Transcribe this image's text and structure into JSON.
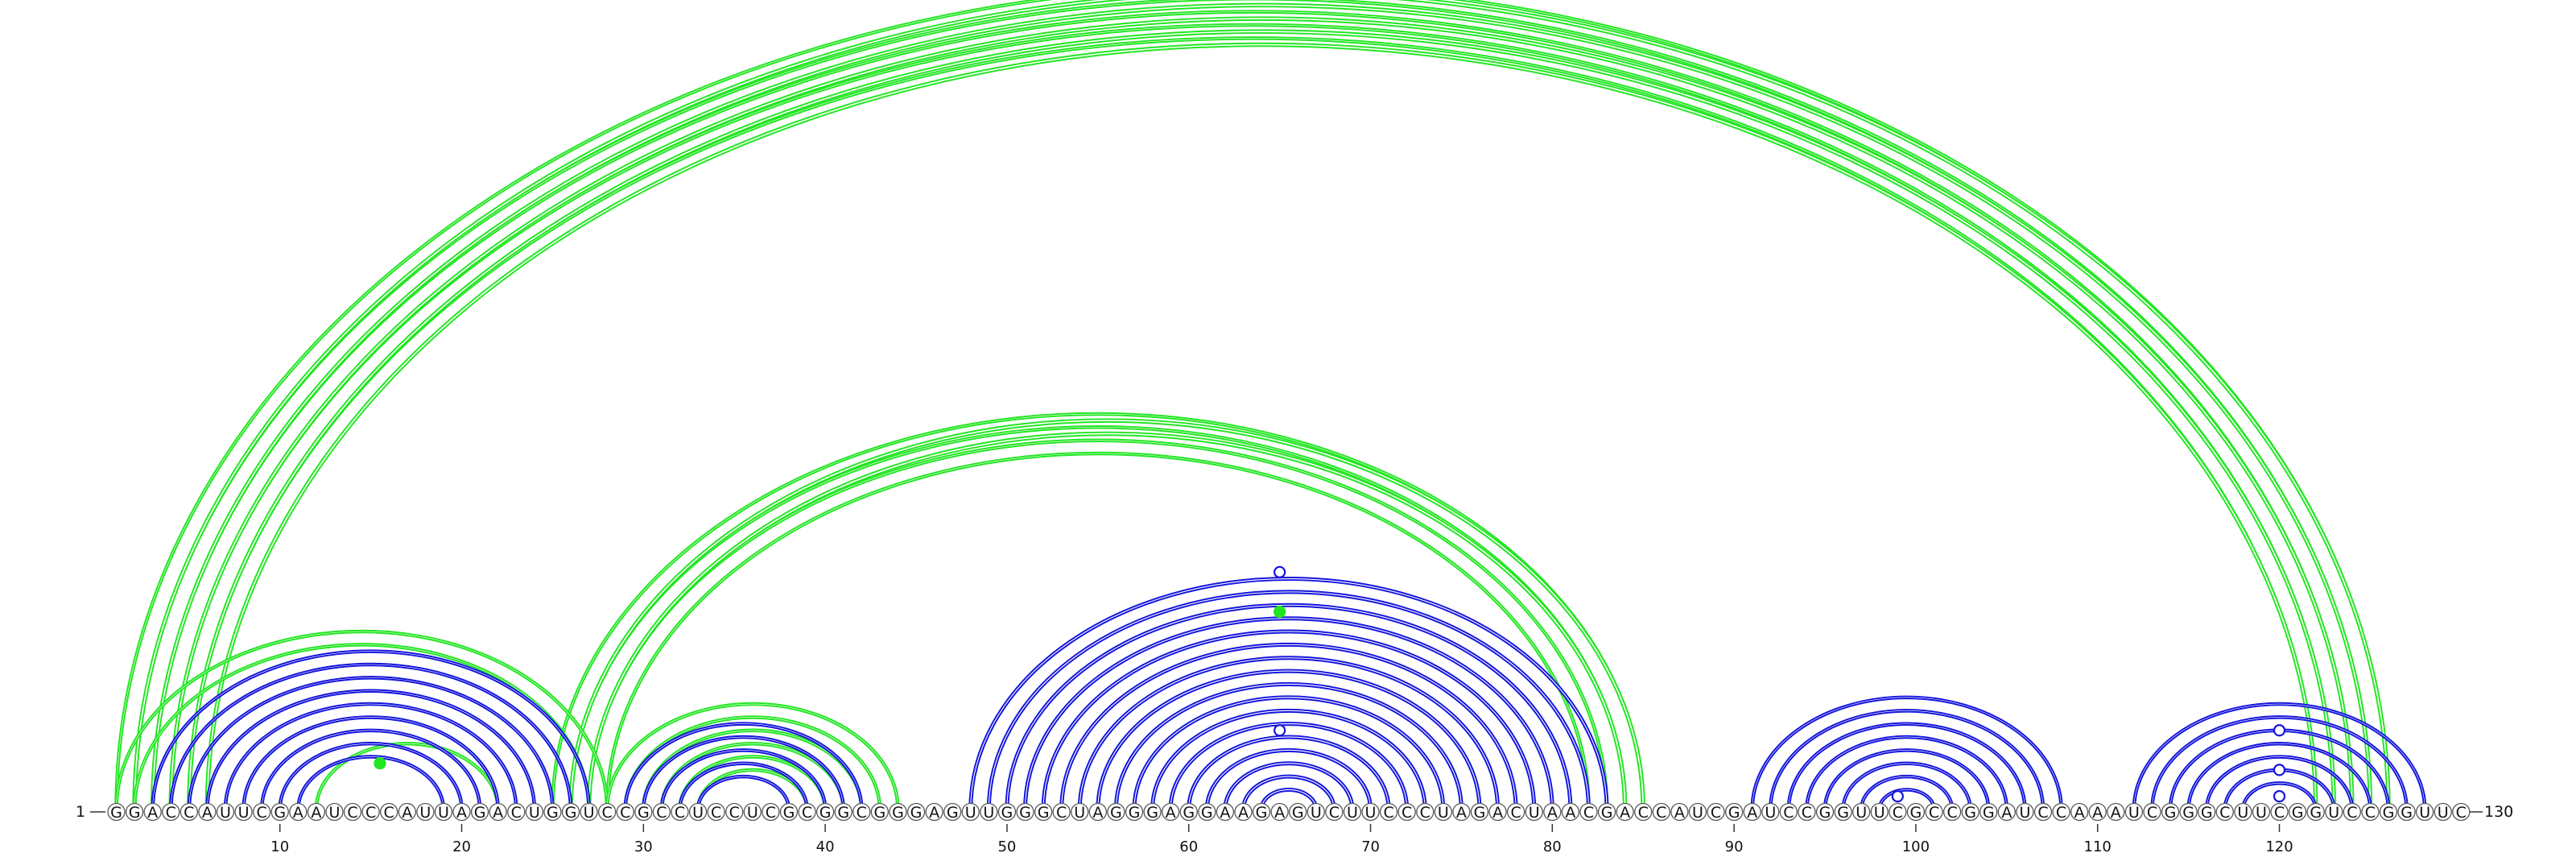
{
  "sequence": "GGACCAUUCGAAUCCCAUUAGACUGGUCCGCCUCCUCGCGGCGGGAGUUGGGCUAGGGAGGAAGAGUCUUCCCUAGACUAACGACCAUCGAUCCGGUUCGCCGGAUCCAAAUCGGGCUUCGGUCCGGUUC",
  "start_label": "1",
  "end_label": "130",
  "ticks": [
    10,
    20,
    30,
    40,
    50,
    60,
    70,
    80,
    90,
    100,
    110,
    120
  ],
  "colors": {
    "blue": "#1414dc",
    "green": "#22e622"
  },
  "arc_groups": [
    {
      "color": "green",
      "weight": 1.5,
      "pairs": [
        [
          1,
          126
        ],
        [
          2,
          125
        ],
        [
          3,
          124
        ],
        [
          4,
          123
        ],
        [
          5,
          122
        ]
      ]
    },
    {
      "color": "green",
      "weight": 2.5,
      "pairs": [
        [
          2,
          126
        ],
        [
          3,
          125
        ],
        [
          4,
          124
        ],
        [
          5,
          123
        ],
        [
          6,
          122
        ]
      ]
    },
    {
      "color": "green",
      "weight": 1.5,
      "pairs": [
        [
          25,
          85
        ],
        [
          26,
          84
        ],
        [
          27,
          83
        ],
        [
          28,
          82
        ]
      ]
    },
    {
      "color": "green",
      "weight": 2.5,
      "pairs": [
        [
          26,
          85
        ],
        [
          27,
          84
        ]
      ]
    },
    {
      "color": "green",
      "weight": 1.5,
      "pairs": [
        [
          1,
          28
        ],
        [
          2,
          27
        ],
        [
          12,
          22
        ],
        [
          28,
          44
        ],
        [
          29,
          43
        ],
        [
          30,
          42
        ],
        [
          31,
          41
        ],
        [
          32,
          40
        ],
        [
          33,
          39
        ]
      ]
    },
    {
      "color": "green",
      "weight": 1.5,
      "pairs": [
        [
          52,
          79
        ]
      ]
    },
    {
      "color": "blue",
      "weight": 1.5,
      "pairs": [
        [
          3,
          27
        ],
        [
          4,
          26
        ],
        [
          5,
          25
        ],
        [
          6,
          24
        ],
        [
          7,
          23
        ],
        [
          8,
          22
        ],
        [
          9,
          21
        ],
        [
          10,
          20
        ],
        [
          11,
          19
        ]
      ]
    },
    {
      "color": "blue",
      "weight": 1.5,
      "pairs": [
        [
          29,
          42
        ],
        [
          30,
          41
        ],
        [
          31,
          40
        ],
        [
          32,
          39
        ],
        [
          33,
          38
        ]
      ]
    },
    {
      "color": "blue",
      "weight": 2.0,
      "pairs": [
        [
          48,
          83
        ],
        [
          49,
          82
        ],
        [
          50,
          81
        ],
        [
          51,
          80
        ],
        [
          52,
          79
        ],
        [
          53,
          78
        ],
        [
          54,
          77
        ],
        [
          55,
          76
        ],
        [
          56,
          75
        ],
        [
          57,
          74
        ],
        [
          58,
          73
        ],
        [
          59,
          72
        ],
        [
          60,
          71
        ],
        [
          61,
          70
        ],
        [
          62,
          69
        ],
        [
          63,
          68
        ],
        [
          64,
          67
        ]
      ]
    },
    {
      "color": "blue",
      "weight": 1.5,
      "pairs": [
        [
          91,
          108
        ],
        [
          92,
          107
        ],
        [
          93,
          106
        ],
        [
          94,
          105
        ],
        [
          95,
          104
        ],
        [
          96,
          103
        ],
        [
          97,
          102
        ],
        [
          98,
          101
        ]
      ]
    },
    {
      "color": "blue",
      "weight": 1.5,
      "pairs": [
        [
          112,
          128
        ],
        [
          113,
          127
        ],
        [
          114,
          126
        ],
        [
          115,
          125
        ],
        [
          116,
          124
        ],
        [
          117,
          123
        ],
        [
          118,
          122
        ]
      ]
    }
  ],
  "markers": [
    {
      "color": "green",
      "fill": false,
      "i": 1,
      "j": 130
    },
    {
      "color": "green",
      "fill": true,
      "i": 12,
      "j": 19
    },
    {
      "color": "blue",
      "fill": false,
      "i": 47,
      "j": 83
    },
    {
      "color": "green",
      "fill": true,
      "i": 50,
      "j": 80
    },
    {
      "color": "blue",
      "fill": false,
      "i": 59,
      "j": 71
    },
    {
      "color": "blue",
      "fill": false,
      "i": 98,
      "j": 100
    },
    {
      "color": "blue",
      "fill": false,
      "i": 114,
      "j": 126
    },
    {
      "color": "blue",
      "fill": false,
      "i": 117,
      "j": 123
    },
    {
      "color": "blue",
      "fill": false,
      "i": 119,
      "j": 121
    }
  ]
}
